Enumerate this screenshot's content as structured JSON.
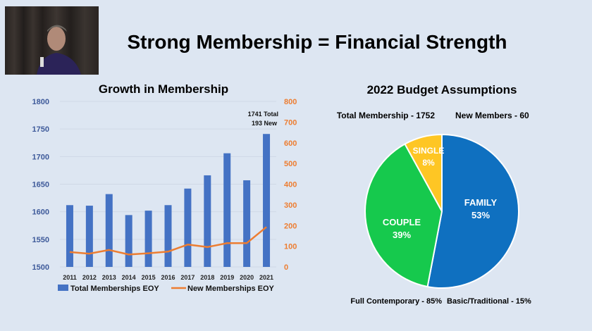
{
  "slide_title": "Strong Membership = Financial Strength",
  "chart_data": [
    {
      "type": "bar",
      "title": "Growth in Membership",
      "categories": [
        "2011",
        "2012",
        "2013",
        "2014",
        "2015",
        "2016",
        "2017",
        "2018",
        "2019",
        "2020",
        "2021"
      ],
      "series": [
        {
          "name": "Total Memberships EOY",
          "kind": "bar",
          "axis": "left",
          "color": "#4472c4",
          "values": [
            1612,
            1611,
            1632,
            1594,
            1602,
            1612,
            1642,
            1666,
            1706,
            1657,
            1741
          ]
        },
        {
          "name": "New Memberships EOY",
          "kind": "line",
          "axis": "right",
          "color": "#ed7d31",
          "values": [
            72,
            64,
            82,
            60,
            66,
            74,
            108,
            96,
            115,
            115,
            193
          ]
        }
      ],
      "ylim_left": [
        1500,
        1800
      ],
      "yticks_left": [
        "1500",
        "1550",
        "1600",
        "1650",
        "1700",
        "1750",
        "1800"
      ],
      "ylim_right": [
        0,
        800
      ],
      "yticks_right": [
        "0",
        "100",
        "200",
        "300",
        "400",
        "500",
        "600",
        "700",
        "800"
      ],
      "annotation": [
        "1741 Total",
        "193 New"
      ],
      "legend_position": "bottom",
      "grid": true
    },
    {
      "type": "pie",
      "title": "2022 Budget Assumptions",
      "subtitle_left": "Total Membership - 1752",
      "subtitle_right": "New Members - 60",
      "slices": [
        {
          "label": "FAMILY",
          "value": 53,
          "pct": "53%",
          "color": "#0f70c0"
        },
        {
          "label": "COUPLE",
          "value": 39,
          "pct": "39%",
          "color": "#16c94d"
        },
        {
          "label": "SINGLE",
          "value": 8,
          "pct": "8%",
          "color": "#fec624"
        }
      ],
      "footer_left": "Full Contemporary - 85%",
      "footer_right": "Basic/Traditional - 15%"
    }
  ]
}
